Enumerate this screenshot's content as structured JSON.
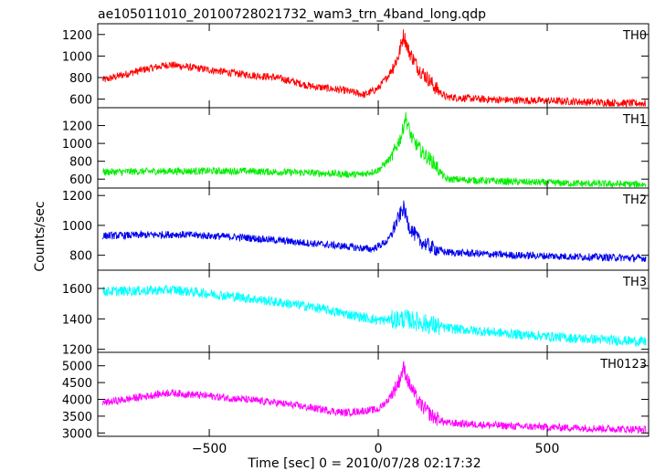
{
  "chart_data": {
    "type": "line",
    "title": "ae105011010_20100728021732_wam3_trn_4band_long.qdp",
    "xlabel": "Time [sec] 0 = 2010/07/28 02:17:32",
    "ylabel": "Counts/sec",
    "xlim": [
      -830,
      800
    ],
    "x_ticks": [
      -500,
      0,
      500
    ],
    "x_tick_labels": [
      "−500",
      "0",
      "500"
    ],
    "grid": false,
    "panels": [
      {
        "name": "TH0",
        "color": "#ff0000",
        "ylim": [
          520,
          1300
        ],
        "y_ticks": [
          600,
          800,
          1000,
          1200
        ],
        "series_x": [
          -810,
          -700,
          -620,
          -520,
          -400,
          -300,
          -200,
          -100,
          -40,
          0,
          30,
          60,
          75,
          90,
          120,
          150,
          170,
          200,
          300,
          400,
          500,
          600,
          700,
          790
        ],
        "series_y": [
          780,
          870,
          920,
          880,
          830,
          800,
          720,
          680,
          640,
          700,
          820,
          1000,
          1200,
          1050,
          880,
          780,
          700,
          620,
          600,
          590,
          585,
          575,
          565,
          560
        ]
      },
      {
        "name": "TH1",
        "color": "#00ee00",
        "ylim": [
          500,
          1400
        ],
        "y_ticks": [
          600,
          800,
          1000,
          1200
        ],
        "series_x": [
          -810,
          -600,
          -400,
          -200,
          -50,
          0,
          40,
          70,
          80,
          100,
          130,
          160,
          180,
          200,
          400,
          600,
          790
        ],
        "series_y": [
          680,
          690,
          690,
          670,
          650,
          700,
          850,
          1100,
          1300,
          1050,
          900,
          800,
          700,
          600,
          570,
          550,
          540
        ]
      },
      {
        "name": "TH2",
        "color": "#0000ee",
        "ylim": [
          700,
          1250
        ],
        "y_ticks": [
          800,
          1000,
          1200
        ],
        "series_x": [
          -810,
          -600,
          -400,
          -200,
          -100,
          -20,
          0,
          30,
          60,
          75,
          90,
          120,
          160,
          200,
          400,
          600,
          790
        ],
        "series_y": [
          930,
          940,
          920,
          880,
          860,
          840,
          860,
          900,
          1050,
          1120,
          1000,
          900,
          850,
          820,
          800,
          790,
          780
        ]
      },
      {
        "name": "TH3",
        "color": "#00ffff",
        "ylim": [
          1180,
          1720
        ],
        "y_ticks": [
          1200,
          1400,
          1600
        ],
        "series_x": [
          -810,
          -600,
          -400,
          -200,
          0,
          80,
          200,
          400,
          600,
          790
        ],
        "series_y": [
          1580,
          1590,
          1540,
          1480,
          1390,
          1400,
          1340,
          1300,
          1270,
          1250
        ]
      },
      {
        "name": "TH0123",
        "color": "#ff00ff",
        "ylim": [
          2900,
          5400
        ],
        "y_ticks": [
          3000,
          3500,
          4000,
          4500,
          5000
        ],
        "series_x": [
          -810,
          -620,
          -500,
          -300,
          -100,
          0,
          30,
          60,
          75,
          90,
          120,
          160,
          200,
          400,
          600,
          790
        ],
        "series_y": [
          3900,
          4200,
          4100,
          3900,
          3600,
          3700,
          4000,
          4500,
          4950,
          4500,
          3900,
          3500,
          3300,
          3200,
          3150,
          3100
        ]
      }
    ]
  }
}
